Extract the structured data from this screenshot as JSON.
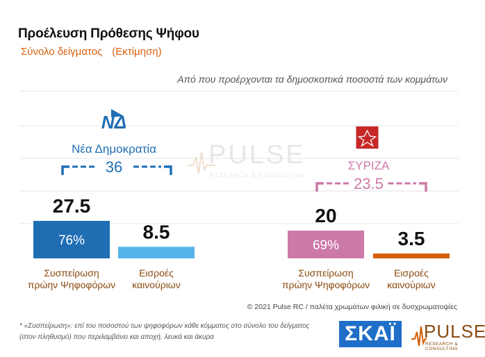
{
  "title": "Προέλευση Πρόθεσης Ψήφου",
  "subtitle": "Σύνολο δείγματος",
  "subtitle_note": "(Εκτίμηση)",
  "question": "Από που προέρχονται τα δημοσκοπικά ποσοστά των κομμάτων",
  "copyright": "© 2021 Pulse RC   /   παλέτα χρωμάτων φιλική σε δυσχρωματοψίες",
  "footnote": "* «Συσπείρωση»: επί του ποσοστού των ψηφοφόρων κάθε κόμματος στο σύνολο του δείγματος (στον πληθυσμό) που περιλαμβάνει και αποχή, λευκά και άκυρα",
  "logos": {
    "skai": "ΣΚΑΪ",
    "pulse": "PULSE",
    "pulse_sub": "RESEARCH & CONSULTING",
    "nd": "ΝΔ"
  },
  "colors": {
    "nd_main": "#1f6eb4",
    "nd_new": "#56b4e9",
    "syriza_main": "#cc79a7",
    "syriza_new": "#d55e00",
    "label": "#8a4a10",
    "grid": "#e5e5e5"
  },
  "chart_data": {
    "type": "bar",
    "categories": [
      "Συσπείρωση πρώην Ψηφοφόρων",
      "Εισροές καινούριων"
    ],
    "groups": [
      {
        "party": "Νέα Δημοκρατία",
        "total": 36,
        "values": [
          27.5,
          8.5
        ],
        "share_label": "76%",
        "colors": [
          "#1f6eb4",
          "#56b4e9"
        ],
        "total_color": "#1f6eb4"
      },
      {
        "party": "ΣΥΡΙΖΑ",
        "total": 23.5,
        "values": [
          20,
          3.5
        ],
        "share_label": "69%",
        "colors": [
          "#cc79a7",
          "#d55e00"
        ],
        "total_color": "#cc79a7"
      }
    ],
    "category_labels": [
      [
        "Συσπείρωση",
        "πρώην Ψηφοφόρων"
      ],
      [
        "Εισροές",
        "καινούριων"
      ]
    ],
    "grid": true
  }
}
